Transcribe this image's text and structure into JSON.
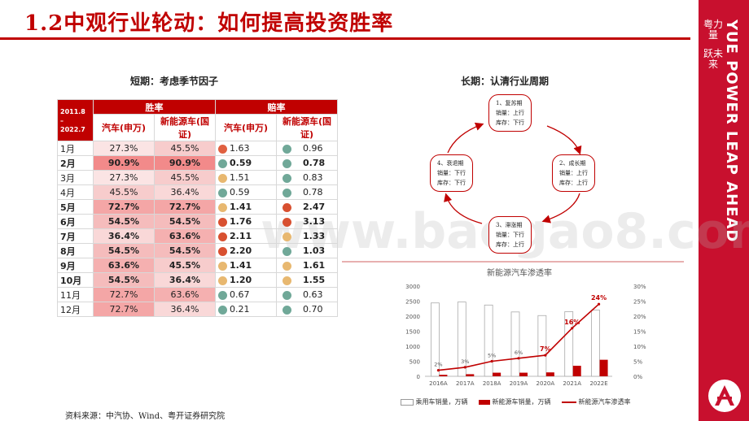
{
  "title": "1.2中观行业轮动：如何提高投资胜率",
  "side": {
    "cn_line1": "粤力量",
    "cn_line2": "跃未来",
    "en": "YUE POWER LEAP AHEAD",
    "brand_color": "#c8102e"
  },
  "watermark": "www.baogao8.com",
  "short": {
    "heading": "短期：考虑季节因子",
    "period": "2011.8\n–\n2022.7",
    "win_label": "胜率",
    "odds_label": "赔率",
    "col_auto": "汽车(申万)",
    "col_nev": "新能源车(国证)",
    "rows": [
      {
        "month": "1月",
        "bold": false,
        "w1": "27.3%",
        "w2": "45.5%",
        "o1": "1.63",
        "c1": "#e06040",
        "o2": "0.96",
        "c2": "#70a898",
        "h1": "#fbe4e4",
        "h2": "#f7cccc"
      },
      {
        "month": "2月",
        "bold": true,
        "w1": "90.9%",
        "w2": "90.9%",
        "o1": "0.59",
        "c1": "#70a898",
        "o2": "0.78",
        "c2": "#70a898",
        "h1": "#f28a8a",
        "h2": "#f28a8a"
      },
      {
        "month": "3月",
        "bold": false,
        "w1": "27.3%",
        "w2": "45.5%",
        "o1": "1.51",
        "c1": "#e8b870",
        "o2": "0.83",
        "c2": "#70a898",
        "h1": "#fbe4e4",
        "h2": "#f7cccc"
      },
      {
        "month": "4月",
        "bold": false,
        "w1": "45.5%",
        "w2": "36.4%",
        "o1": "0.59",
        "c1": "#70a898",
        "o2": "0.78",
        "c2": "#70a898",
        "h1": "#f7cccc",
        "h2": "#f9d8d8"
      },
      {
        "month": "5月",
        "bold": true,
        "w1": "72.7%",
        "w2": "72.7%",
        "o1": "1.41",
        "c1": "#e8b870",
        "o2": "2.47",
        "c2": "#d85030",
        "h1": "#f4a6a6",
        "h2": "#f4a6a6"
      },
      {
        "month": "6月",
        "bold": true,
        "w1": "54.5%",
        "w2": "54.5%",
        "o1": "1.76",
        "c1": "#d85030",
        "o2": "3.13",
        "c2": "#d85030",
        "h1": "#f5bcbc",
        "h2": "#f5bcbc"
      },
      {
        "month": "7月",
        "bold": true,
        "w1": "36.4%",
        "w2": "63.6%",
        "o1": "2.11",
        "c1": "#d85030",
        "o2": "1.33",
        "c2": "#e8b870",
        "h1": "#f9d8d8",
        "h2": "#f5b0b0"
      },
      {
        "month": "8月",
        "bold": true,
        "w1": "54.5%",
        "w2": "54.5%",
        "o1": "2.20",
        "c1": "#d85030",
        "o2": "1.03",
        "c2": "#70a898",
        "h1": "#f5bcbc",
        "h2": "#f5bcbc"
      },
      {
        "month": "9月",
        "bold": true,
        "w1": "63.6%",
        "w2": "45.5%",
        "o1": "1.41",
        "c1": "#e8b870",
        "o2": "1.61",
        "c2": "#e8b870",
        "h1": "#f5b0b0",
        "h2": "#f7cccc"
      },
      {
        "month": "10月",
        "bold": true,
        "w1": "54.5%",
        "w2": "36.4%",
        "o1": "1.20",
        "c1": "#e8b870",
        "o2": "1.55",
        "c2": "#e8b870",
        "h1": "#f5bcbc",
        "h2": "#f9d8d8"
      },
      {
        "month": "11月",
        "bold": false,
        "w1": "72.7%",
        "w2": "63.6%",
        "o1": "0.67",
        "c1": "#70a898",
        "o2": "0.63",
        "c2": "#70a898",
        "h1": "#f4a6a6",
        "h2": "#f5b0b0"
      },
      {
        "month": "12月",
        "bold": false,
        "w1": "72.7%",
        "w2": "36.4%",
        "o1": "0.21",
        "c1": "#70a898",
        "o2": "0.70",
        "c2": "#70a898",
        "h1": "#f4a6a6",
        "h2": "#f9d8d8"
      }
    ]
  },
  "long": {
    "heading": "长期：认清行业周期",
    "phases": [
      {
        "name": "1、复苏期",
        "l1": "销量：上行",
        "l2": "库存：下行"
      },
      {
        "name": "2、成长期",
        "l1": "销量：上行",
        "l2": "库存：上行"
      },
      {
        "name": "3、滞涨期",
        "l1": "销量：下行",
        "l2": "库存：上行"
      },
      {
        "name": "4、衰退期",
        "l1": "销量：下行",
        "l2": "库存：下行"
      }
    ]
  },
  "chart_data": {
    "type": "bar",
    "title": "新能源汽车渗透率",
    "categories": [
      "2016A",
      "2017A",
      "2018A",
      "2019A",
      "2020A",
      "2021A",
      "2022E"
    ],
    "series": [
      {
        "name": "乘用车销量，万辆",
        "values": [
          2440,
          2470,
          2370,
          2140,
          2020,
          2150,
          2200
        ]
      },
      {
        "name": "新能源车销量，万辆",
        "values": [
          50,
          70,
          120,
          120,
          130,
          350,
          550
        ]
      },
      {
        "name": "新能源汽车渗透率",
        "axis": "right",
        "values": [
          2,
          3,
          5,
          6,
          7,
          16,
          24
        ],
        "labels": [
          "2%",
          "3%",
          "5%",
          "6%",
          "7%",
          "16%",
          "24%"
        ]
      }
    ],
    "ylim": [
      0,
      3000
    ],
    "yticks": [
      "0",
      "500",
      "1000",
      "1500",
      "2000",
      "2500",
      "3000"
    ],
    "y2lim": [
      0,
      30
    ],
    "y2ticks": [
      "0%",
      "5%",
      "10%",
      "15%",
      "20%",
      "25%",
      "30%"
    ]
  },
  "source": "资料来源：中汽协、Wind、粤开证券研究院"
}
